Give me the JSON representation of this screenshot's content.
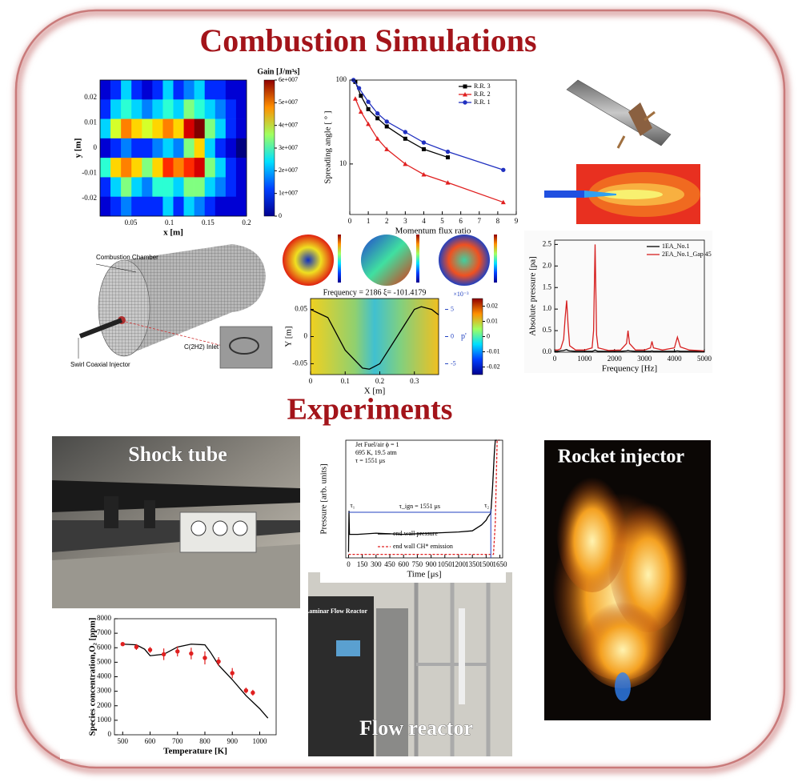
{
  "title": "Combustion Simulations",
  "experiments_title": "Experiments",
  "mesh_labels": [
    "Combustion Chamber",
    "C(2H2) Inlet",
    "Swirl Coaxial Injector"
  ],
  "photo_labels": {
    "shock_tube": "Shock tube",
    "rocket_injector": "Rocket injector",
    "flow_reactor": "Flow reactor",
    "reactor_sign": "Laminar Flow Reactor"
  },
  "chart_data": [
    {
      "type": "heatmap",
      "xlabel": "x [m]",
      "ylabel": "y [m]",
      "colorbar_label": "Gain [J/m³s]",
      "xlim": [
        0.01,
        0.2
      ],
      "ylim": [
        -0.027,
        0.027
      ],
      "xticks": [
        0.05,
        0.1,
        0.15,
        0.2
      ],
      "yticks": [
        -0.02,
        -0.01,
        0,
        0.01,
        0.02
      ],
      "zlim": [
        0,
        60000000.0
      ],
      "colorbar_ticks": [
        0,
        {
          "value": 10000000.0,
          "label": "1e+007"
        },
        {
          "value": 20000000.0,
          "label": "2e+007"
        },
        {
          "value": 30000000.0,
          "label": "3e+007"
        },
        {
          "value": 40000000.0,
          "label": "4e+007"
        },
        {
          "value": 50000000.0,
          "label": "5e+007"
        },
        {
          "value": 60000000.0,
          "label": "6e+007"
        }
      ],
      "z": [
        [
          5000000.0,
          10000000.0,
          20000000.0,
          10000000.0,
          5000000.0,
          10000000.0,
          20000000.0,
          10000000.0,
          15000000.0,
          20000000.0,
          10000000.0,
          10000000.0,
          5000000.0,
          5000000.0
        ],
        [
          10000000.0,
          20000000.0,
          25000000.0,
          20000000.0,
          15000000.0,
          20000000.0,
          25000000.0,
          20000000.0,
          30000000.0,
          25000000.0,
          20000000.0,
          15000000.0,
          10000000.0,
          5000000.0
        ],
        [
          20000000.0,
          35000000.0,
          45000000.0,
          40000000.0,
          35000000.0,
          40000000.0,
          45000000.0,
          40000000.0,
          55000000.0,
          60000000.0,
          30000000.0,
          20000000.0,
          10000000.0,
          5000000.0
        ],
        [
          5000000.0,
          10000000.0,
          15000000.0,
          10000000.0,
          10000000.0,
          15000000.0,
          20000000.0,
          15000000.0,
          30000000.0,
          40000000.0,
          20000000.0,
          10000000.0,
          5000000.0,
          0
        ],
        [
          25000000.0,
          40000000.0,
          45000000.0,
          40000000.0,
          30000000.0,
          40000000.0,
          50000000.0,
          45000000.0,
          50000000.0,
          55000000.0,
          30000000.0,
          20000000.0,
          10000000.0,
          5000000.0
        ],
        [
          10000000.0,
          20000000.0,
          30000000.0,
          20000000.0,
          15000000.0,
          25000000.0,
          25000000.0,
          20000000.0,
          30000000.0,
          30000000.0,
          20000000.0,
          15000000.0,
          10000000.0,
          5000000.0
        ],
        [
          5000000.0,
          10000000.0,
          15000000.0,
          10000000.0,
          10000000.0,
          10000000.0,
          20000000.0,
          10000000.0,
          20000000.0,
          15000000.0,
          10000000.0,
          5000000.0,
          5000000.0,
          5000000.0
        ]
      ]
    },
    {
      "type": "line",
      "xlabel": "Momentum flux ratio",
      "ylabel": "Spreading angle [ ° ]",
      "ylog": true,
      "legend": "top-right",
      "xlim": [
        0,
        9
      ],
      "ylim": [
        2.5,
        100
      ],
      "xticks": [
        0,
        1,
        2,
        3,
        4,
        5,
        6,
        7,
        8,
        9
      ],
      "yticks": [
        10,
        100
      ],
      "series": [
        {
          "name": "R.R. 3",
          "color": "#000000",
          "marker": "square",
          "x": [
            0.3,
            0.6,
            1,
            1.5,
            2,
            3,
            4,
            5.3
          ],
          "values": [
            95,
            65,
            45,
            35,
            28,
            20,
            15,
            12
          ]
        },
        {
          "name": "R.R. 2",
          "color": "#e02020",
          "marker": "triangle",
          "x": [
            0.3,
            0.6,
            1,
            1.5,
            2,
            3,
            4,
            5.3,
            8.3
          ],
          "values": [
            60,
            42,
            30,
            20,
            15,
            10,
            7.5,
            6,
            3.5
          ]
        },
        {
          "name": "R.R. 1",
          "color": "#2030c0",
          "marker": "circle",
          "x": [
            0.2,
            0.5,
            1,
            1.5,
            2,
            3,
            4,
            5.3,
            8.3
          ],
          "values": [
            100,
            80,
            55,
            40,
            32,
            24,
            18,
            14,
            8.5
          ]
        }
      ]
    },
    {
      "type": "line",
      "xlabel": "Frequency [Hz]",
      "ylabel": "Absolute pressure [pa]",
      "legend": "top-right",
      "xlim": [
        0,
        5000
      ],
      "ylim": [
        0,
        2.6
      ],
      "xticks": [
        0,
        1000,
        2000,
        3000,
        4000,
        5000
      ],
      "yticks": [
        {
          "value": 0,
          "label": "0.0"
        },
        0.5,
        {
          "value": 1,
          "label": "1.0"
        },
        1.5,
        {
          "value": 2,
          "label": "2.0"
        },
        2.5
      ],
      "x": [
        0,
        100,
        200,
        300,
        350,
        400,
        450,
        500,
        700,
        1000,
        1250,
        1300,
        1350,
        1400,
        1450,
        1800,
        2200,
        2400,
        2450,
        2500,
        2700,
        3000,
        3200,
        3250,
        3300,
        3600,
        4000,
        4100,
        4200,
        4500,
        5000
      ],
      "series": [
        {
          "name": "1EA_No.1",
          "color": "#000000",
          "values": [
            0.02,
            0.02,
            0.03,
            0.04,
            0.05,
            0.06,
            0.04,
            0.03,
            0.02,
            0.02,
            0.02,
            0.03,
            0.05,
            0.03,
            0.02,
            0.02,
            0.02,
            0.03,
            0.04,
            0.03,
            0.02,
            0.02,
            0.02,
            0.03,
            0.02,
            0.02,
            0.02,
            0.03,
            0.02,
            0.02,
            0.02
          ]
        },
        {
          "name": "2EA_No.1_Gap 45",
          "color": "#d62020",
          "values": [
            0.05,
            0.05,
            0.08,
            0.3,
            0.8,
            1.2,
            0.6,
            0.15,
            0.05,
            0.05,
            0.1,
            0.5,
            2.5,
            0.4,
            0.1,
            0.04,
            0.05,
            0.2,
            0.5,
            0.2,
            0.05,
            0.05,
            0.1,
            0.25,
            0.1,
            0.05,
            0.1,
            0.35,
            0.12,
            0.05,
            0.03
          ]
        }
      ]
    },
    {
      "type": "line",
      "title": "Frequency = 2186   ξ= -101.4179",
      "xlabel": "X [m]",
      "ylabel": "Y [m]",
      "y2label": "p'",
      "y2_exponent": "×10⁻³",
      "xlim": [
        0,
        0.37
      ],
      "ylim": [
        -0.07,
        0.07
      ],
      "xticks": [
        0,
        0.1,
        0.2,
        0.3
      ],
      "yticks": [
        -0.05,
        0,
        0.05
      ],
      "y2lim": [
        -7,
        7
      ],
      "y2ticks": [
        -5,
        0,
        5
      ],
      "clim": [
        -0.025,
        0.025
      ],
      "colorbar_ticks": [
        0.02,
        0.01,
        0,
        -0.01,
        -0.02
      ],
      "series": [
        {
          "color": "#000000",
          "x": [
            0,
            0.05,
            0.1,
            0.15,
            0.17,
            0.2,
            0.25,
            0.3,
            0.32,
            0.35,
            0.37
          ],
          "values": [
            0.05,
            0.035,
            -0.025,
            -0.058,
            -0.06,
            -0.05,
            0.0,
            0.05,
            0.055,
            0.05,
            0.04
          ]
        }
      ]
    },
    {
      "type": "line",
      "xlabel": "Time [μs]",
      "ylabel": "Pressure [arb. units]",
      "legend": "bottom-left",
      "xlim": [
        -30,
        1680
      ],
      "ylim": [
        0,
        10
      ],
      "xticks": [
        0,
        150,
        300,
        450,
        600,
        750,
        900,
        1050,
        1200,
        1350,
        1500,
        1650
      ],
      "annotations": [
        "Jet Fuel/air ϕ = 1",
        "695 K, 19.5 atm",
        "τ = 1551 μs",
        "τ₁",
        "τ₂",
        "τ_ign = 1551 μs"
      ],
      "series": [
        {
          "name": "end wall pressure",
          "color": "#000000",
          "x": [
            0,
            5,
            10,
            100,
            300,
            600,
            900,
            1200,
            1350,
            1450,
            1500,
            1520,
            1551,
            1570,
            1590,
            1600,
            1620
          ],
          "values": [
            0.5,
            4,
            2,
            2,
            2.1,
            2,
            2.1,
            2.2,
            2.3,
            2.8,
            3.2,
            3.5,
            3.8,
            6,
            9,
            10,
            10
          ]
        },
        {
          "name": "end wall CH* emission",
          "color": "#e02020",
          "dash": true,
          "x": [
            0,
            1500,
            1580,
            1600,
            1620,
            1650
          ],
          "values": [
            0.3,
            0.3,
            0.3,
            3,
            10,
            10
          ]
        }
      ]
    },
    {
      "type": "line",
      "xlabel": "Temperature [K]",
      "ylabel": "Species concentration,O₂ [ppm]",
      "xlim": [
        470,
        1060
      ],
      "ylim": [
        0,
        8000
      ],
      "xticks": [
        500,
        600,
        700,
        800,
        900,
        1000
      ],
      "yticks": [
        0,
        1000,
        2000,
        3000,
        4000,
        5000,
        6000,
        7000,
        8000
      ],
      "series": [
        {
          "color": "#000000",
          "x": [
            500,
            550,
            580,
            600,
            650,
            700,
            750,
            800,
            820,
            850,
            900,
            950,
            1000,
            1030
          ],
          "values": [
            6250,
            6200,
            5900,
            5450,
            5550,
            6050,
            6250,
            6200,
            5700,
            4800,
            3800,
            2700,
            1800,
            1150
          ]
        },
        {
          "color": "#e02020",
          "marker": "circle",
          "line": false,
          "x": [
            500,
            550,
            600,
            650,
            700,
            750,
            800,
            850,
            900,
            950,
            975
          ],
          "values": [
            6250,
            6050,
            5850,
            5550,
            5750,
            5600,
            5300,
            5050,
            4250,
            3050,
            2900
          ],
          "errors": [
            0,
            200,
            200,
            400,
            350,
            400,
            450,
            300,
            350,
            200,
            200
          ]
        }
      ]
    }
  ]
}
